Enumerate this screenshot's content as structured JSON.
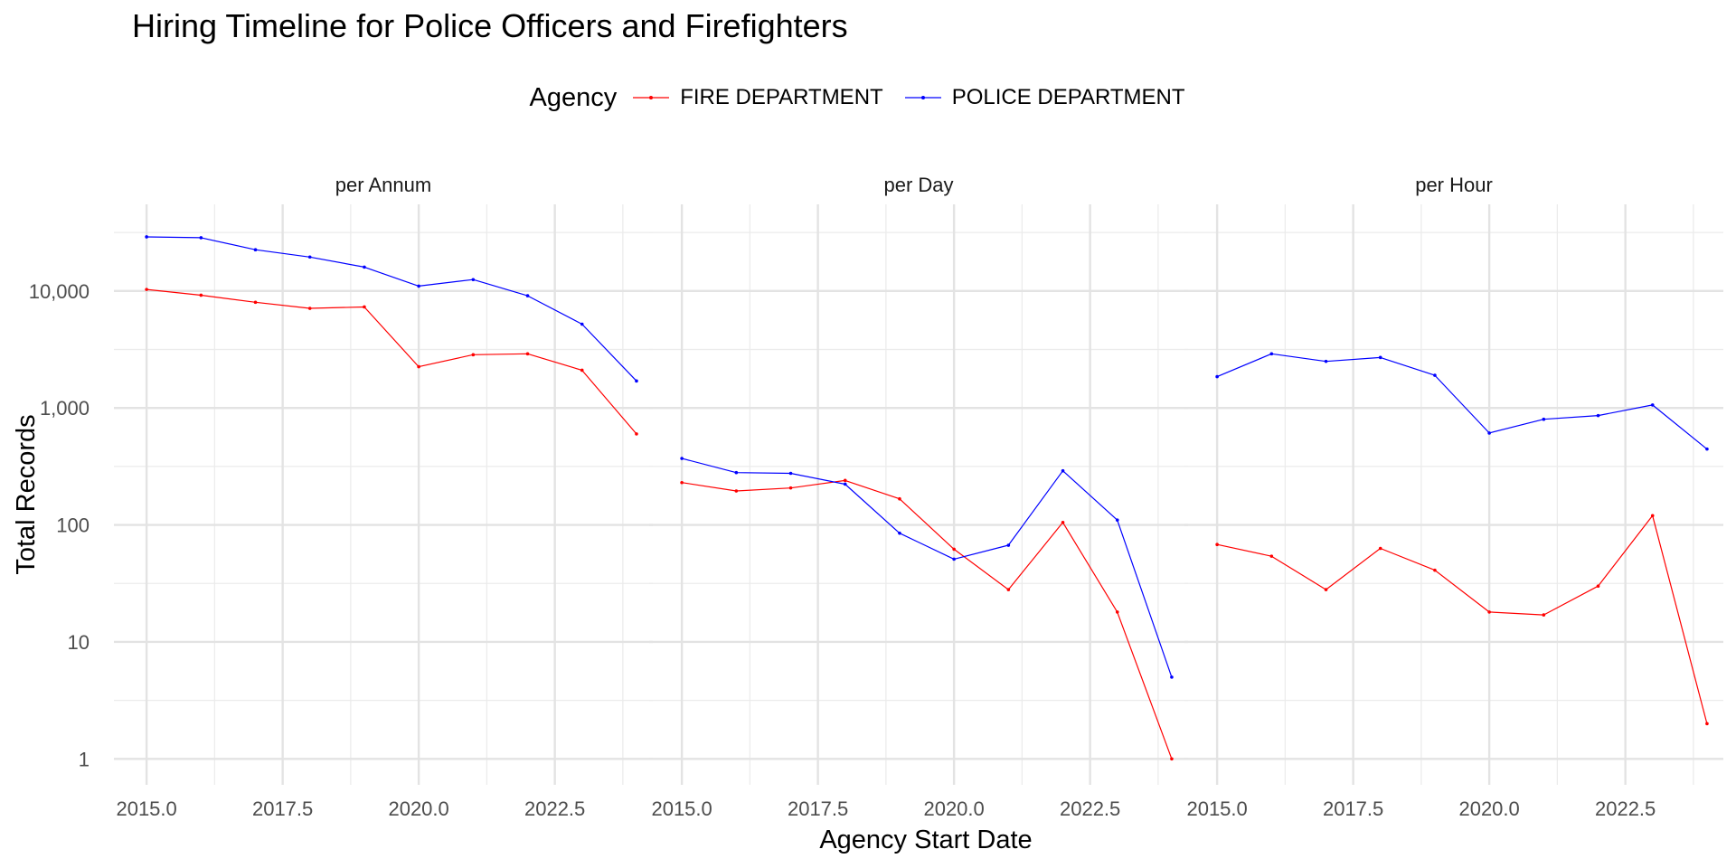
{
  "chart_data": {
    "type": "line",
    "title": "Hiring Timeline for Police Officers and Firefighters",
    "xlabel": "Agency Start Date",
    "ylabel": "Total Records",
    "y_scale": "log10",
    "ylim": [
      0.6,
      55000
    ],
    "xlim": [
      2014.4,
      2024.3
    ],
    "x_ticks": [
      2015.0,
      2017.5,
      2020.0,
      2022.5
    ],
    "x_tick_labels": [
      "2015.0",
      "2017.5",
      "2020.0",
      "2022.5"
    ],
    "y_ticks": [
      1,
      10,
      100,
      1000,
      10000
    ],
    "y_tick_labels": [
      "1",
      "10",
      "100",
      "1,000",
      "10,000"
    ],
    "grid": true,
    "legend": {
      "title": "Agency",
      "position": "top"
    },
    "panels": [
      {
        "label": "per Annum",
        "x": [
          2015,
          2016,
          2017,
          2018,
          2019,
          2020,
          2021,
          2022,
          2023,
          2024
        ],
        "series": [
          {
            "name": "FIRE DEPARTMENT",
            "color": "#ff0000",
            "values": [
              10300,
              9200,
              8000,
              7100,
              7300,
              2250,
              2850,
              2900,
              2100,
              600
            ]
          },
          {
            "name": "POLICE DEPARTMENT",
            "color": "#0000ff",
            "values": [
              29000,
              28500,
              22500,
              19500,
              16000,
              11000,
              12500,
              9100,
              5200,
              1700
            ]
          }
        ]
      },
      {
        "label": "per Day",
        "x": [
          2015,
          2016,
          2017,
          2018,
          2019,
          2020,
          2021,
          2022,
          2023,
          2024
        ],
        "series": [
          {
            "name": "FIRE DEPARTMENT",
            "color": "#ff0000",
            "values": [
              230,
              195,
              207,
              240,
              167,
              62,
              28,
              105,
              18,
              1
            ]
          },
          {
            "name": "POLICE DEPARTMENT",
            "color": "#0000ff",
            "values": [
              370,
              280,
              276,
              223,
              85,
              51,
              67,
              290,
              110,
              5
            ]
          }
        ]
      },
      {
        "label": "per Hour",
        "x": [
          2015,
          2016,
          2017,
          2018,
          2019,
          2020,
          2021,
          2022,
          2023,
          2024
        ],
        "series": [
          {
            "name": "FIRE DEPARTMENT",
            "color": "#ff0000",
            "values": [
              68,
              54,
              28,
              63,
              41,
              18,
              17,
              30,
              120,
              2
            ]
          },
          {
            "name": "POLICE DEPARTMENT",
            "color": "#0000ff",
            "values": [
              1850,
              2900,
              2500,
              2700,
              1900,
              610,
              800,
              860,
              1060,
              445
            ]
          }
        ]
      }
    ]
  }
}
